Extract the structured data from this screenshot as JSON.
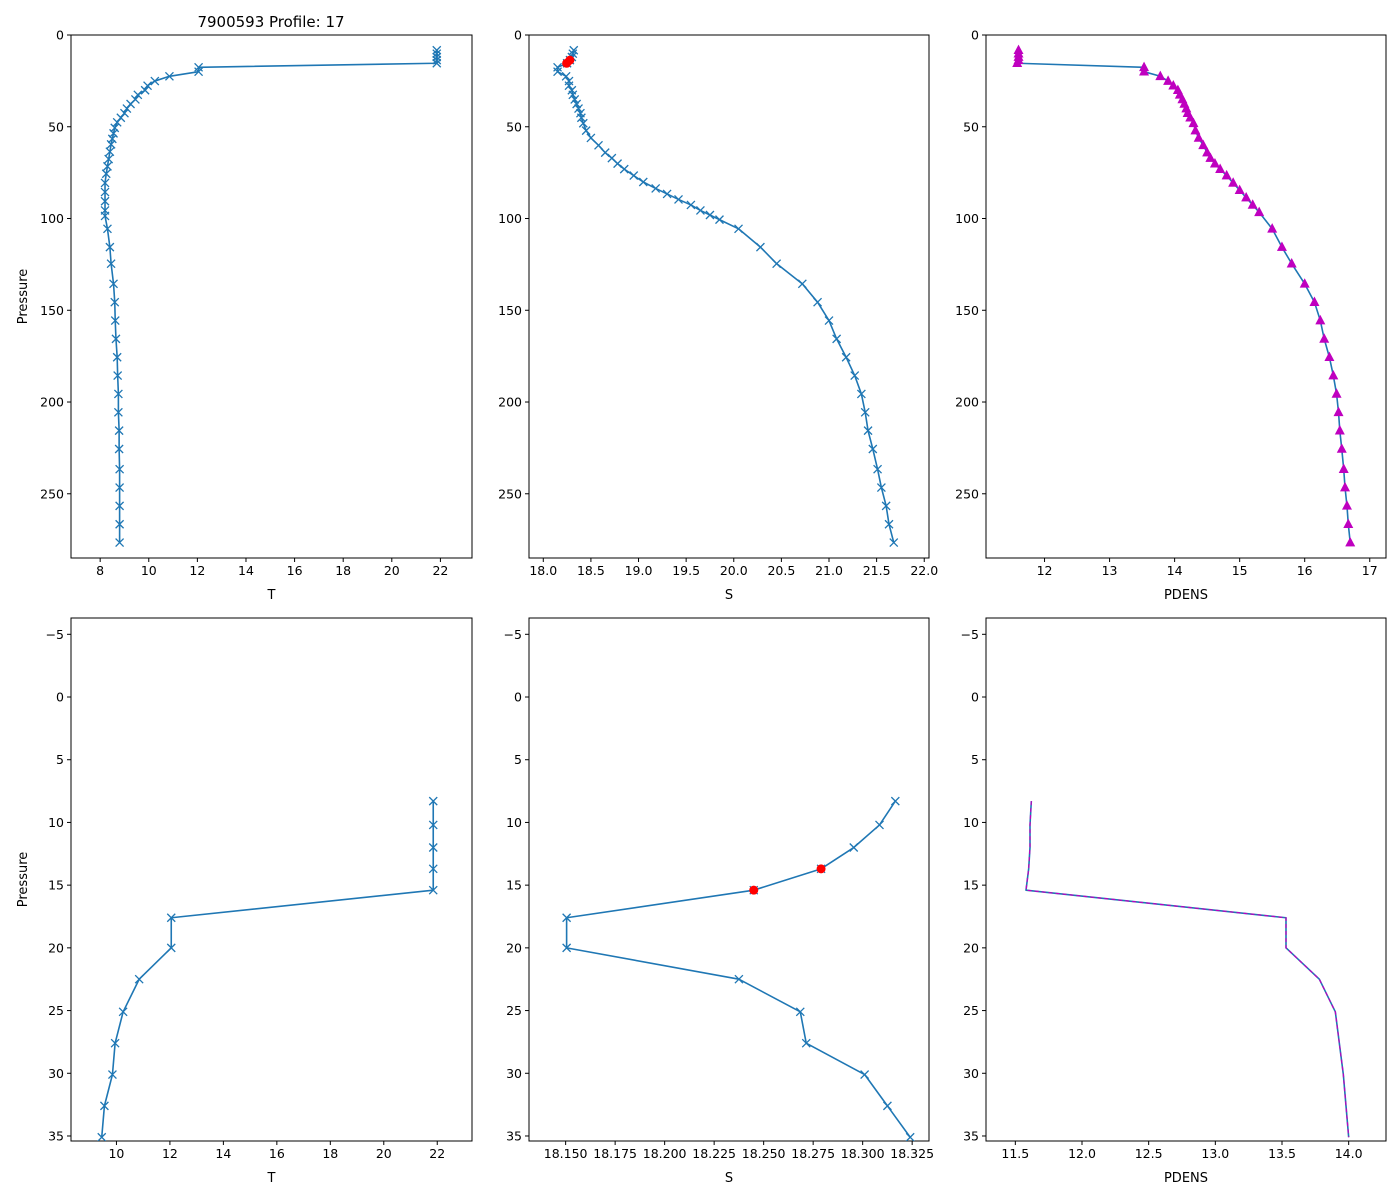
{
  "figure_title": "7900593 Profile: 17",
  "colors": {
    "line": "#1f77b4",
    "highlight": "#ff0000",
    "density_marker": "#bf00bf"
  },
  "chart_data": [
    {
      "type": "line",
      "panel": "top-left",
      "title": "7900593 Profile: 17",
      "xlabel": "T",
      "ylabel": "Pressure",
      "xlim": [
        6.8,
        23.3
      ],
      "ylim": [
        285,
        0
      ],
      "xticks": [
        8,
        10,
        12,
        14,
        16,
        18,
        20,
        22
      ],
      "yticks": [
        0,
        50,
        100,
        150,
        200,
        250
      ],
      "marker": "x",
      "series": [
        {
          "name": "T",
          "x": [
            21.85,
            21.85,
            21.85,
            21.85,
            21.85,
            12.05,
            12.05,
            10.85,
            10.25,
            9.95,
            9.85,
            9.55,
            9.45,
            9.25,
            9.1,
            9.0,
            8.85,
            8.7,
            8.6,
            8.55,
            8.5,
            8.45,
            8.4,
            8.35,
            8.3,
            8.25,
            8.2,
            8.2,
            8.2,
            8.2,
            8.2,
            8.3,
            8.4,
            8.45,
            8.55,
            8.6,
            8.62,
            8.65,
            8.7,
            8.72,
            8.75,
            8.75,
            8.78,
            8.78,
            8.8,
            8.8,
            8.8,
            8.8,
            8.8
          ],
          "y": [
            8.3,
            10.2,
            12.0,
            13.7,
            15.4,
            17.6,
            20.0,
            22.5,
            25.1,
            27.6,
            30.1,
            32.6,
            35.1,
            37.6,
            40.1,
            42.6,
            45.1,
            47.6,
            50.6,
            53.6,
            56.6,
            59.6,
            63.6,
            67.6,
            71.6,
            75.6,
            80.6,
            85.6,
            90.6,
            95.6,
            98.6,
            105.6,
            115.6,
            124.6,
            135.6,
            145.6,
            155.6,
            165.6,
            175.6,
            185.6,
            195.6,
            205.6,
            215.6,
            225.6,
            236.6,
            246.6,
            256.6,
            266.6,
            276.6
          ]
        }
      ]
    },
    {
      "type": "line",
      "panel": "top-middle",
      "xlabel": "S",
      "ylabel": "",
      "xlim": [
        17.85,
        22.05
      ],
      "ylim": [
        285,
        0
      ],
      "xticks": [
        18.0,
        18.5,
        19.0,
        19.5,
        20.0,
        20.5,
        21.0,
        21.5,
        22.0
      ],
      "xtick_labels": [
        "18.0",
        "18.5",
        "19.0",
        "19.5",
        "20.0",
        "20.5",
        "21.0",
        "21.5",
        "22.0"
      ],
      "yticks": [
        0,
        50,
        100,
        150,
        200,
        250
      ],
      "marker": "x",
      "series": [
        {
          "name": "S",
          "x": [
            18.32,
            18.31,
            18.3,
            18.28,
            18.25,
            18.15,
            18.15,
            18.24,
            18.27,
            18.27,
            18.3,
            18.31,
            18.33,
            18.35,
            18.37,
            18.39,
            18.4,
            18.42,
            18.45,
            18.5,
            18.58,
            18.65,
            18.72,
            18.78,
            18.85,
            18.95,
            19.05,
            19.18,
            19.3,
            19.42,
            19.55,
            19.65,
            19.75,
            19.85,
            20.05,
            20.28,
            20.45,
            20.72,
            20.88,
            21.0,
            21.08,
            21.18,
            21.27,
            21.34,
            21.38,
            21.41,
            21.46,
            21.51,
            21.55,
            21.6,
            21.63,
            21.68
          ],
          "y": [
            8.3,
            10.2,
            12.0,
            13.7,
            15.4,
            17.6,
            20.0,
            22.5,
            25.1,
            27.6,
            30.1,
            32.6,
            35.1,
            37.6,
            40.1,
            42.6,
            45.1,
            48.1,
            52.1,
            56.1,
            60.1,
            64.1,
            67.1,
            70.1,
            73.1,
            76.6,
            80.1,
            83.6,
            86.6,
            89.6,
            92.6,
            95.6,
            98.1,
            100.6,
            105.6,
            115.6,
            124.6,
            135.6,
            145.6,
            155.6,
            165.6,
            175.6,
            185.6,
            195.6,
            205.6,
            215.6,
            225.6,
            236.6,
            246.6,
            256.6,
            266.6,
            276.6
          ]
        }
      ],
      "highlight_points": [
        {
          "x": 18.279,
          "y": 13.7
        },
        {
          "x": 18.245,
          "y": 15.4
        }
      ]
    },
    {
      "type": "line",
      "panel": "top-right",
      "xlabel": "PDENS",
      "ylabel": "",
      "xlim": [
        11.1,
        17.25
      ],
      "ylim": [
        285,
        0
      ],
      "xticks": [
        12,
        13,
        14,
        15,
        16,
        17
      ],
      "yticks": [
        0,
        50,
        100,
        150,
        200,
        250
      ],
      "marker": "^",
      "series": [
        {
          "name": "PDENS",
          "x": [
            11.6,
            11.6,
            11.6,
            11.6,
            11.58,
            13.53,
            13.53,
            13.78,
            13.9,
            13.98,
            14.05,
            14.08,
            14.12,
            14.15,
            14.18,
            14.2,
            14.24,
            14.29,
            14.32,
            14.37,
            14.44,
            14.5,
            14.55,
            14.62,
            14.7,
            14.8,
            14.9,
            15.0,
            15.1,
            15.2,
            15.3,
            15.5,
            15.65,
            15.8,
            16.0,
            16.15,
            16.24,
            16.3,
            16.38,
            16.44,
            16.49,
            16.52,
            16.54,
            16.57,
            16.6,
            16.62,
            16.65,
            16.67,
            16.7
          ],
          "y": [
            8.3,
            10.2,
            12.0,
            13.7,
            15.4,
            17.6,
            20.0,
            22.5,
            25.1,
            27.6,
            30.1,
            32.6,
            35.1,
            37.6,
            40.1,
            42.6,
            45.1,
            48.1,
            52.1,
            56.1,
            60.1,
            64.1,
            67.1,
            70.1,
            73.1,
            76.6,
            80.6,
            84.6,
            88.6,
            92.6,
            96.6,
            105.6,
            115.6,
            124.6,
            135.6,
            145.6,
            155.6,
            165.6,
            175.6,
            185.6,
            195.6,
            205.6,
            215.6,
            225.6,
            236.6,
            246.6,
            256.6,
            266.6,
            276.6
          ]
        }
      ]
    },
    {
      "type": "line",
      "panel": "bottom-left",
      "xlabel": "T",
      "ylabel": "Pressure",
      "xlim": [
        8.3,
        23.3
      ],
      "ylim": [
        35.4,
        -6.3
      ],
      "xticks": [
        10,
        12,
        14,
        16,
        18,
        20,
        22
      ],
      "yticks": [
        -5,
        0,
        5,
        10,
        15,
        20,
        25,
        30,
        35
      ],
      "ytick_labels": [
        "−5",
        "0",
        "5",
        "10",
        "15",
        "20",
        "25",
        "30",
        "35"
      ],
      "marker": "x",
      "series": [
        {
          "name": "T",
          "x": [
            21.85,
            21.85,
            21.85,
            21.85,
            21.85,
            12.05,
            12.05,
            10.85,
            10.25,
            9.95,
            9.85,
            9.55,
            9.45
          ],
          "y": [
            8.3,
            10.2,
            12.0,
            13.7,
            15.4,
            17.6,
            20.0,
            22.5,
            25.1,
            27.6,
            30.1,
            32.6,
            35.1
          ]
        }
      ]
    },
    {
      "type": "line",
      "panel": "bottom-middle",
      "xlabel": "S",
      "ylabel": "",
      "xlim": [
        18.1315,
        18.3335
      ],
      "ylim": [
        35.4,
        -6.3
      ],
      "xticks": [
        18.15,
        18.175,
        18.2,
        18.225,
        18.25,
        18.275,
        18.3,
        18.325
      ],
      "xtick_labels": [
        "18.150",
        "18.175",
        "18.200",
        "18.225",
        "18.250",
        "18.275",
        "18.300",
        "18.325"
      ],
      "yticks": [
        -5,
        0,
        5,
        10,
        15,
        20,
        25,
        30,
        35
      ],
      "ytick_labels": [
        "−5",
        "0",
        "5",
        "10",
        "15",
        "20",
        "25",
        "30",
        "35"
      ],
      "marker": "x",
      "series": [
        {
          "name": "S",
          "x": [
            18.3165,
            18.3085,
            18.2955,
            18.279,
            18.245,
            18.1505,
            18.1505,
            18.2375,
            18.2685,
            18.2715,
            18.301,
            18.3125,
            18.324
          ],
          "y": [
            8.3,
            10.2,
            12.0,
            13.7,
            15.4,
            17.6,
            20.0,
            22.5,
            25.1,
            27.6,
            30.1,
            32.6,
            35.1
          ]
        }
      ],
      "highlight_points": [
        {
          "x": 18.279,
          "y": 13.7
        },
        {
          "x": 18.245,
          "y": 15.4
        }
      ]
    },
    {
      "type": "line",
      "panel": "bottom-right",
      "xlabel": "PDENS",
      "ylabel": "",
      "xlim": [
        11.28,
        14.28
      ],
      "ylim": [
        35.4,
        -6.3
      ],
      "xticks": [
        11.5,
        12.0,
        12.5,
        13.0,
        13.5,
        14.0
      ],
      "xtick_labels": [
        "11.5",
        "12.0",
        "12.5",
        "13.0",
        "13.5",
        "14.0"
      ],
      "yticks": [
        -5,
        0,
        5,
        10,
        15,
        20,
        25,
        30,
        35
      ],
      "ytick_labels": [
        "−5",
        "0",
        "5",
        "10",
        "15",
        "20",
        "25",
        "30",
        "35"
      ],
      "marker": "none",
      "series": [
        {
          "name": "PDENS",
          "x": [
            11.62,
            11.61,
            11.61,
            11.6,
            11.58,
            13.53,
            13.53,
            13.78,
            13.9,
            13.93,
            13.96,
            13.98,
            14.0
          ],
          "y": [
            8.3,
            10.2,
            12.0,
            13.7,
            15.4,
            17.6,
            20.0,
            22.5,
            25.1,
            27.6,
            30.1,
            32.6,
            35.1
          ]
        }
      ]
    }
  ]
}
